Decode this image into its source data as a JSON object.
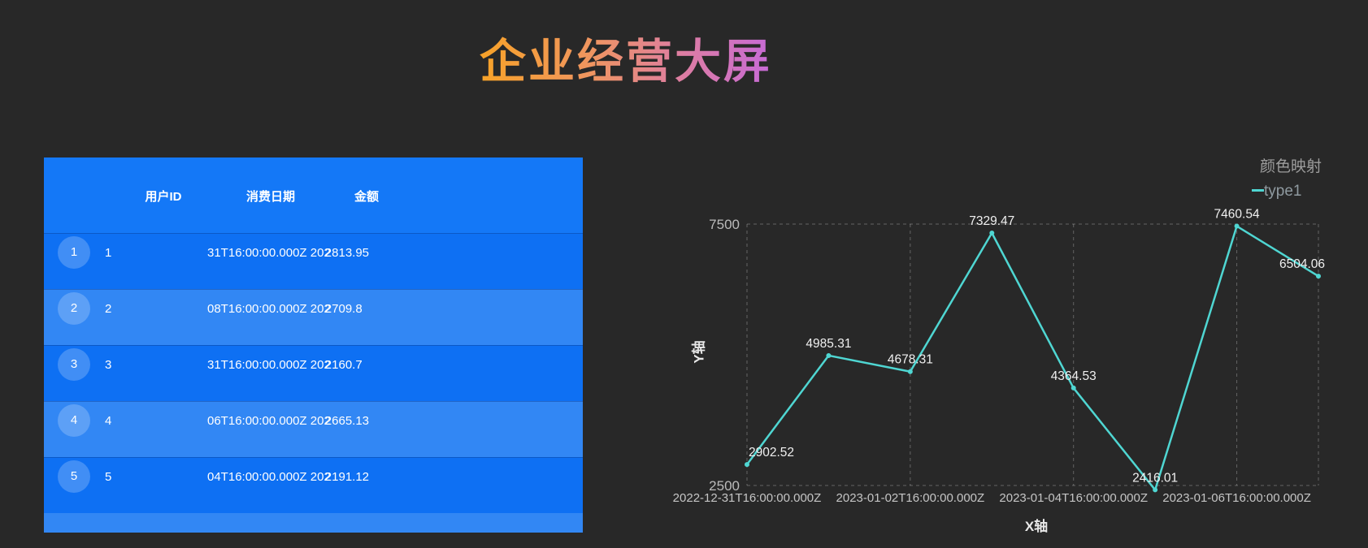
{
  "page": {
    "title": "企业经营大屏",
    "background": "#282828"
  },
  "colors": {
    "table_header_blue": "#1478f7",
    "row_dark_blue": "#0e70f3",
    "row_light_blue": "#3287f4",
    "line_teal": "#4fd6d2",
    "title_gradient_start": "#f7a228",
    "title_gradient_end": "#c76ad7",
    "background": "#282828"
  },
  "table": {
    "headers": [
      "用户ID",
      "消费日期",
      "金额"
    ],
    "rows": [
      {
        "seq": "1",
        "id": "1",
        "date_clipped": "31T16:00:00.000Z 202",
        "amount": "2813.95"
      },
      {
        "seq": "2",
        "id": "2",
        "date_clipped": "08T16:00:00.000Z 202",
        "amount": "2709.8"
      },
      {
        "seq": "3",
        "id": "3",
        "date_clipped": "31T16:00:00.000Z 202",
        "amount": "2160.7"
      },
      {
        "seq": "4",
        "id": "4",
        "date_clipped": "06T16:00:00.000Z 202",
        "amount": "2665.13"
      },
      {
        "seq": "5",
        "id": "5",
        "date_clipped": "04T16:00:00.000Z 202",
        "amount": "2191.12"
      }
    ]
  },
  "chart": {
    "legend_title": "颜色映射",
    "series_name": "type1",
    "xlabel": "X轴",
    "ylabel": "Y轴"
  },
  "chart_data": {
    "type": "line",
    "title": "颜色映射",
    "legend": [
      "type1"
    ],
    "legend_position": "top-right",
    "grid": "dashed",
    "xlabel": "X轴",
    "ylabel": "Y轴",
    "ylim": [
      2500,
      7500
    ],
    "y_ticks": [
      7500,
      2500
    ],
    "num_points": 8,
    "x_tick_labels": [
      "2022-12-31T16:00:00.000Z",
      "2023-01-02T16:00:00.000Z",
      "2023-01-04T16:00:00.000Z",
      "2023-01-06T16:00:00.000Z"
    ],
    "x_tick_point_indices": [
      0,
      2,
      4,
      6
    ],
    "series": [
      {
        "name": "type1",
        "color": "#4fd6d2",
        "values": [
          2902.52,
          4985.31,
          4678.31,
          7329.47,
          4364.53,
          2416.01,
          7460.54,
          6504.06
        ]
      }
    ],
    "point_labels": [
      "2902.52",
      "4985.31",
      "4678.31",
      "7329.47",
      "4364.53",
      "2416.01",
      "7460.54",
      "6504.06"
    ]
  }
}
